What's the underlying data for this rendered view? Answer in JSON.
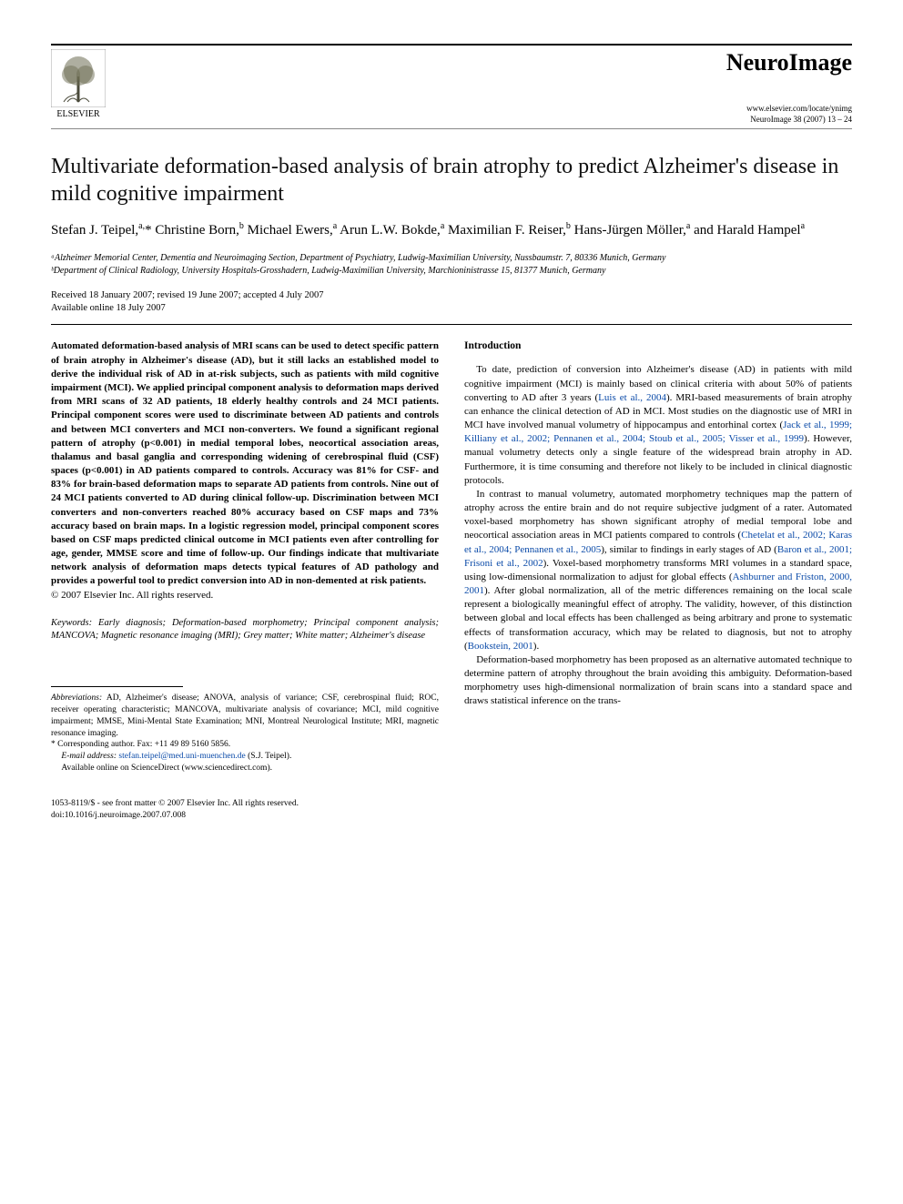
{
  "header": {
    "publisher": "ELSEVIER",
    "journal": "NeuroImage",
    "locator": "www.elsevier.com/locate/ynimg",
    "citation": "NeuroImage 38 (2007) 13 – 24"
  },
  "title": "Multivariate deformation-based analysis of brain atrophy to predict Alzheimer's disease in mild cognitive impairment",
  "authors_html": "Stefan J. Teipel,<sup>a,</sup>* Christine Born,<sup>b</sup> Michael Ewers,<sup>a</sup> Arun L.W. Bokde,<sup>a</sup> Maximilian F. Reiser,<sup>b</sup> Hans-Jürgen Möller,<sup>a</sup> and Harald Hampel<sup>a</sup>",
  "affiliations": [
    "ᵃAlzheimer Memorial Center, Dementia and Neuroimaging Section, Department of Psychiatry, Ludwig-Maximilian University, Nussbaumstr. 7, 80336 Munich, Germany",
    "ᵇDepartment of Clinical Radiology, University Hospitals-Grosshadern, Ludwig-Maximilian University, Marchioninistrasse 15, 81377 Munich, Germany"
  ],
  "dates": {
    "received": "Received 18 January 2007; revised 19 June 2007; accepted 4 July 2007",
    "online": "Available online 18 July 2007"
  },
  "abstract": "Automated deformation-based analysis of MRI scans can be used to detect specific pattern of brain atrophy in Alzheimer's disease (AD), but it still lacks an established model to derive the individual risk of AD in at-risk subjects, such as patients with mild cognitive impairment (MCI). We applied principal component analysis to deformation maps derived from MRI scans of 32 AD patients, 18 elderly healthy controls and 24 MCI patients. Principal component scores were used to discriminate between AD patients and controls and between MCI converters and MCI non-converters. We found a significant regional pattern of atrophy (p<0.001) in medial temporal lobes, neocortical association areas, thalamus and basal ganglia and corresponding widening of cerebrospinal fluid (CSF) spaces (p<0.001) in AD patients compared to controls. Accuracy was 81% for CSF- and 83% for brain-based deformation maps to separate AD patients from controls. Nine out of 24 MCI patients converted to AD during clinical follow-up. Discrimination between MCI converters and non-converters reached 80% accuracy based on CSF maps and 73% accuracy based on brain maps. In a logistic regression model, principal component scores based on CSF maps predicted clinical outcome in MCI patients even after controlling for age, gender, MMSE score and time of follow-up. Our findings indicate that multivariate network analysis of deformation maps detects typical features of AD pathology and provides a powerful tool to predict conversion into AD in non-demented at risk patients.",
  "copyright": "© 2007 Elsevier Inc. All rights reserved.",
  "keywords": {
    "label": "Keywords:",
    "text": " Early diagnosis; Deformation-based morphometry; Principal component analysis; MANCOVA; Magnetic resonance imaging (MRI); Grey matter; White matter; Alzheimer's disease"
  },
  "intro": {
    "heading": "Introduction",
    "p1_pre": "To date, prediction of conversion into Alzheimer's disease (AD) in patients with mild cognitive impairment (MCI) is mainly based on clinical criteria with about 50% of patients converting to AD after 3 years (",
    "p1_c1": "Luis et al., 2004",
    "p1_mid1": "). MRI-based measurements of brain atrophy can enhance the clinical detection of AD in MCI. Most studies on the diagnostic use of MRI in MCI have involved manual volumetry of hippocampus and entorhinal cortex (",
    "p1_c2": "Jack et al., 1999; Killiany et al., 2002; Pennanen et al., 2004; Stoub et al., 2005; Visser et al., 1999",
    "p1_post": "). However, manual volumetry detects only a single feature of the widespread brain atrophy in AD. Furthermore, it is time consuming and therefore not likely to be included in clinical diagnostic protocols.",
    "p2_pre": "In contrast to manual volumetry, automated morphometry techniques map the pattern of atrophy across the entire brain and do not require subjective judgment of a rater. Automated voxel-based morphometry has shown significant atrophy of medial temporal lobe and neocortical association areas in MCI patients compared to controls (",
    "p2_c1": "Chetelat et al., 2002; Karas et al., 2004; Pennanen et al., 2005",
    "p2_mid1": "), similar to findings in early stages of AD (",
    "p2_c2": "Baron et al., 2001; Frisoni et al., 2002",
    "p2_mid2": "). Voxel-based morphometry transforms MRI volumes in a standard space, using low-dimensional normalization to adjust for global effects (",
    "p2_c3": "Ashburner and Friston, 2000, 2001",
    "p2_mid3": "). After global normalization, all of the metric differences remaining on the local scale represent a biologically meaningful effect of atrophy. The validity, however, of this distinction between global and local effects has been challenged as being arbitrary and prone to systematic effects of transformation accuracy, which may be related to diagnosis, but not to atrophy (",
    "p2_c4": "Bookstein, 2001",
    "p2_post": ").",
    "p3": "Deformation-based morphometry has been proposed as an alternative automated technique to determine pattern of atrophy throughout the brain avoiding this ambiguity. Deformation-based morphometry uses high-dimensional normalization of brain scans into a standard space and draws statistical inference on the trans-"
  },
  "footnotes": {
    "abbrev_label": "Abbreviations:",
    "abbrev_text": " AD, Alzheimer's disease; ANOVA, analysis of variance; CSF, cerebrospinal fluid; ROC, receiver operating characteristic; MANCOVA, multivariate analysis of covariance; MCI, mild cognitive impairment; MMSE, Mini-Mental State Examination; MNI, Montreal Neurological Institute; MRI, magnetic resonance imaging.",
    "corr": "* Corresponding author. Fax: +11 49 89 5160 5856.",
    "email_label": "E-mail address:",
    "email": "stefan.teipel@med.uni-muenchen.de",
    "email_tail": " (S.J. Teipel).",
    "sd": "Available online on ScienceDirect (www.sciencedirect.com)."
  },
  "bottom": {
    "line1": "1053-8119/$ - see front matter © 2007 Elsevier Inc. All rights reserved.",
    "line2": "doi:10.1016/j.neuroimage.2007.07.008"
  },
  "colors": {
    "text": "#000000",
    "link": "#0a4aa8",
    "rule": "#000000",
    "light_rule": "#888888",
    "background": "#ffffff"
  }
}
